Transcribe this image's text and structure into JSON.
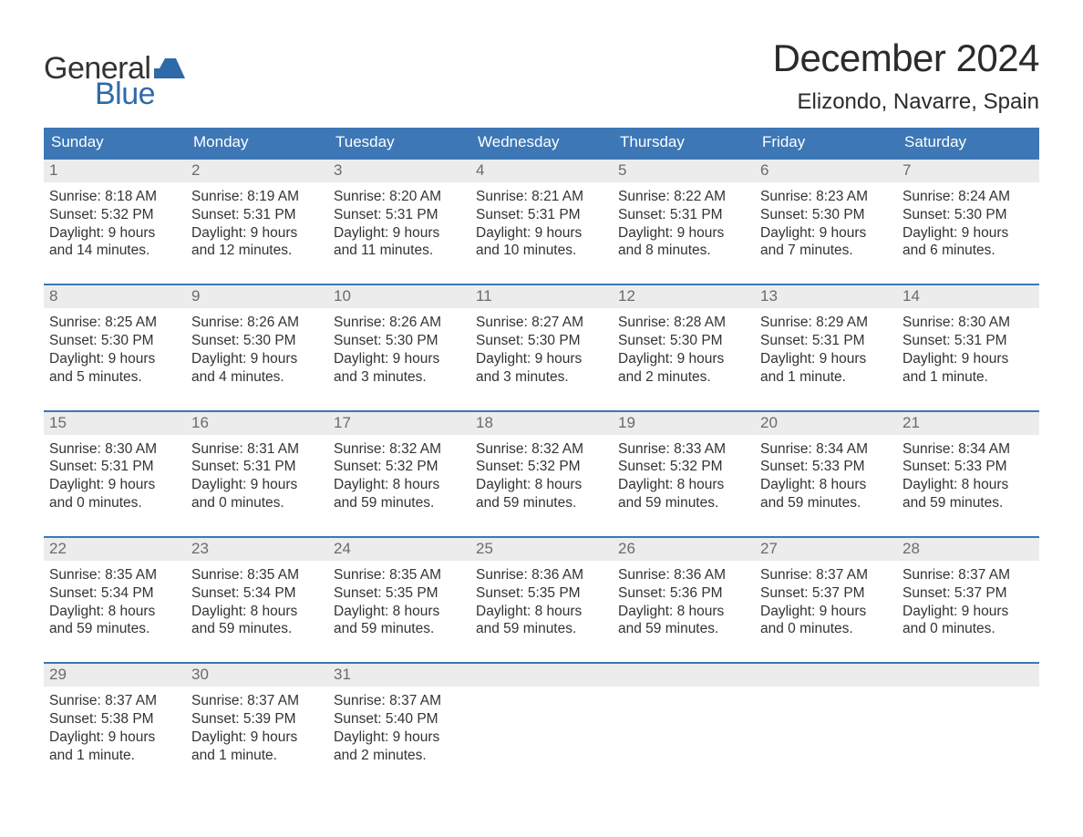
{
  "brand": {
    "top": "General",
    "bottom": "Blue"
  },
  "title": "December 2024",
  "location": "Elizondo, Navarre, Spain",
  "colors": {
    "header_bg": "#3d77b6",
    "header_text": "#ffffff",
    "daynum_bg": "#ececec",
    "daynum_text": "#6b6b6b",
    "body_text": "#333333",
    "brand_blue": "#2f6aa8",
    "background": "#ffffff",
    "week_border": "#3d77b6"
  },
  "typography": {
    "title_fontsize": 42,
    "location_fontsize": 24,
    "dow_fontsize": 17,
    "cell_fontsize": 15.5,
    "font_family": "Arial"
  },
  "layout": {
    "columns": 7,
    "weeks": 5,
    "start_day_index": 0,
    "days_in_month": 31
  },
  "dow": [
    "Sunday",
    "Monday",
    "Tuesday",
    "Wednesday",
    "Thursday",
    "Friday",
    "Saturday"
  ],
  "days": [
    {
      "n": 1,
      "sr": "8:18 AM",
      "ss": "5:32 PM",
      "dl": "9 hours and 14 minutes."
    },
    {
      "n": 2,
      "sr": "8:19 AM",
      "ss": "5:31 PM",
      "dl": "9 hours and 12 minutes."
    },
    {
      "n": 3,
      "sr": "8:20 AM",
      "ss": "5:31 PM",
      "dl": "9 hours and 11 minutes."
    },
    {
      "n": 4,
      "sr": "8:21 AM",
      "ss": "5:31 PM",
      "dl": "9 hours and 10 minutes."
    },
    {
      "n": 5,
      "sr": "8:22 AM",
      "ss": "5:31 PM",
      "dl": "9 hours and 8 minutes."
    },
    {
      "n": 6,
      "sr": "8:23 AM",
      "ss": "5:30 PM",
      "dl": "9 hours and 7 minutes."
    },
    {
      "n": 7,
      "sr": "8:24 AM",
      "ss": "5:30 PM",
      "dl": "9 hours and 6 minutes."
    },
    {
      "n": 8,
      "sr": "8:25 AM",
      "ss": "5:30 PM",
      "dl": "9 hours and 5 minutes."
    },
    {
      "n": 9,
      "sr": "8:26 AM",
      "ss": "5:30 PM",
      "dl": "9 hours and 4 minutes."
    },
    {
      "n": 10,
      "sr": "8:26 AM",
      "ss": "5:30 PM",
      "dl": "9 hours and 3 minutes."
    },
    {
      "n": 11,
      "sr": "8:27 AM",
      "ss": "5:30 PM",
      "dl": "9 hours and 3 minutes."
    },
    {
      "n": 12,
      "sr": "8:28 AM",
      "ss": "5:30 PM",
      "dl": "9 hours and 2 minutes."
    },
    {
      "n": 13,
      "sr": "8:29 AM",
      "ss": "5:31 PM",
      "dl": "9 hours and 1 minute."
    },
    {
      "n": 14,
      "sr": "8:30 AM",
      "ss": "5:31 PM",
      "dl": "9 hours and 1 minute."
    },
    {
      "n": 15,
      "sr": "8:30 AM",
      "ss": "5:31 PM",
      "dl": "9 hours and 0 minutes."
    },
    {
      "n": 16,
      "sr": "8:31 AM",
      "ss": "5:31 PM",
      "dl": "9 hours and 0 minutes."
    },
    {
      "n": 17,
      "sr": "8:32 AM",
      "ss": "5:32 PM",
      "dl": "8 hours and 59 minutes."
    },
    {
      "n": 18,
      "sr": "8:32 AM",
      "ss": "5:32 PM",
      "dl": "8 hours and 59 minutes."
    },
    {
      "n": 19,
      "sr": "8:33 AM",
      "ss": "5:32 PM",
      "dl": "8 hours and 59 minutes."
    },
    {
      "n": 20,
      "sr": "8:34 AM",
      "ss": "5:33 PM",
      "dl": "8 hours and 59 minutes."
    },
    {
      "n": 21,
      "sr": "8:34 AM",
      "ss": "5:33 PM",
      "dl": "8 hours and 59 minutes."
    },
    {
      "n": 22,
      "sr": "8:35 AM",
      "ss": "5:34 PM",
      "dl": "8 hours and 59 minutes."
    },
    {
      "n": 23,
      "sr": "8:35 AM",
      "ss": "5:34 PM",
      "dl": "8 hours and 59 minutes."
    },
    {
      "n": 24,
      "sr": "8:35 AM",
      "ss": "5:35 PM",
      "dl": "8 hours and 59 minutes."
    },
    {
      "n": 25,
      "sr": "8:36 AM",
      "ss": "5:35 PM",
      "dl": "8 hours and 59 minutes."
    },
    {
      "n": 26,
      "sr": "8:36 AM",
      "ss": "5:36 PM",
      "dl": "8 hours and 59 minutes."
    },
    {
      "n": 27,
      "sr": "8:37 AM",
      "ss": "5:37 PM",
      "dl": "9 hours and 0 minutes."
    },
    {
      "n": 28,
      "sr": "8:37 AM",
      "ss": "5:37 PM",
      "dl": "9 hours and 0 minutes."
    },
    {
      "n": 29,
      "sr": "8:37 AM",
      "ss": "5:38 PM",
      "dl": "9 hours and 1 minute."
    },
    {
      "n": 30,
      "sr": "8:37 AM",
      "ss": "5:39 PM",
      "dl": "9 hours and 1 minute."
    },
    {
      "n": 31,
      "sr": "8:37 AM",
      "ss": "5:40 PM",
      "dl": "9 hours and 2 minutes."
    }
  ],
  "labels": {
    "sunrise": "Sunrise:",
    "sunset": "Sunset:",
    "daylight": "Daylight:"
  }
}
